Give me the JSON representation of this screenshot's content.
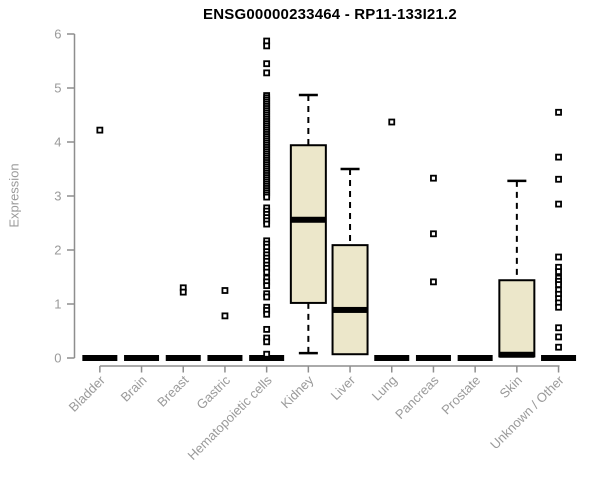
{
  "chart_data": {
    "type": "boxplot",
    "title": "ENSG00000233464 - RP11-133I21.2",
    "ylabel": "Expression",
    "xlabel": "",
    "ylim": [
      0,
      6
    ],
    "y_ticks": [
      "0",
      "1",
      "2",
      "3",
      "4",
      "5",
      "6"
    ],
    "grid": false,
    "legend": "none",
    "categories": [
      "Bladder",
      "Brain",
      "Breast",
      "Gastric",
      "Hematopoietic cells",
      "Kidney",
      "Liver",
      "Lung",
      "Pancreas",
      "Prostate",
      "Skin",
      "Unknown / Other"
    ],
    "series": [
      {
        "name": "Bladder",
        "q1": 0,
        "median": 0,
        "q3": 0,
        "whisker_low": 0,
        "whisker_high": 0,
        "outliers": [
          4.22
        ]
      },
      {
        "name": "Brain",
        "q1": 0,
        "median": 0,
        "q3": 0,
        "whisker_low": 0,
        "whisker_high": 0,
        "outliers": []
      },
      {
        "name": "Breast",
        "q1": 0,
        "median": 0,
        "q3": 0,
        "whisker_low": 0,
        "whisker_high": 0,
        "outliers": [
          1.3,
          1.22
        ]
      },
      {
        "name": "Gastric",
        "q1": 0,
        "median": 0,
        "q3": 0,
        "whisker_low": 0,
        "whisker_high": 0,
        "outliers": [
          1.25,
          0.78
        ]
      },
      {
        "name": "Hematopoietic cells",
        "q1": 0,
        "median": 0,
        "q3": 0,
        "whisker_low": 0,
        "whisker_high": 0,
        "outliers": [
          5.87,
          5.78,
          5.45,
          5.28,
          4.86,
          4.82,
          4.78,
          4.74,
          4.7,
          4.66,
          4.62,
          4.58,
          4.54,
          4.5,
          4.46,
          4.42,
          4.38,
          4.34,
          4.3,
          4.26,
          4.22,
          4.18,
          4.14,
          4.1,
          4.06,
          4.02,
          3.98,
          3.94,
          3.9,
          3.86,
          3.82,
          3.78,
          3.74,
          3.7,
          3.66,
          3.62,
          3.58,
          3.54,
          3.5,
          3.46,
          3.42,
          3.38,
          3.34,
          3.3,
          3.26,
          3.22,
          3.18,
          3.14,
          3.1,
          3.06,
          3.02,
          2.98,
          2.78,
          2.72,
          2.66,
          2.6,
          2.54,
          2.48,
          2.17,
          2.11,
          2.05,
          1.97,
          1.91,
          1.85,
          1.79,
          1.72,
          1.66,
          1.59,
          1.48,
          1.41,
          1.34,
          1.19,
          1.13,
          0.94,
          0.88,
          0.81,
          0.53,
          0.37,
          0.3,
          0.07
        ]
      },
      {
        "name": "Kidney",
        "q1": 1.02,
        "median": 2.56,
        "q3": 3.94,
        "whisker_low": 0.09,
        "whisker_high": 4.87,
        "outliers": []
      },
      {
        "name": "Liver",
        "q1": 0.07,
        "median": 0.89,
        "q3": 2.09,
        "whisker_low": 0.07,
        "whisker_high": 3.5,
        "outliers": []
      },
      {
        "name": "Lung",
        "q1": 0,
        "median": 0,
        "q3": 0,
        "whisker_low": 0,
        "whisker_high": 0,
        "outliers": [
          4.37
        ]
      },
      {
        "name": "Pancreas",
        "q1": 0,
        "median": 0,
        "q3": 0,
        "whisker_low": 0,
        "whisker_high": 0,
        "outliers": [
          3.33,
          2.3,
          1.41
        ]
      },
      {
        "name": "Prostate",
        "q1": 0,
        "median": 0,
        "q3": 0,
        "whisker_low": 0,
        "whisker_high": 0,
        "outliers": []
      },
      {
        "name": "Skin",
        "q1": 0.03,
        "median": 0.06,
        "q3": 1.44,
        "whisker_low": 0.03,
        "whisker_high": 3.28,
        "outliers": []
      },
      {
        "name": "Unknown / Other",
        "q1": 0,
        "median": 0,
        "q3": 0,
        "whisker_low": 0,
        "whisker_high": 0,
        "outliers": [
          4.55,
          3.72,
          3.31,
          2.85,
          1.87,
          1.68,
          1.6,
          1.48,
          1.42,
          1.36,
          1.26,
          1.18,
          1.1,
          1.02,
          0.94,
          0.56,
          0.39,
          0.2
        ]
      }
    ]
  },
  "colors": {
    "box_fill": "#ECE7CA",
    "box_border": "#000000",
    "median": "#000000",
    "whisker": "#000000",
    "outlier_stroke": "#000000",
    "outlier_fill": "#ffffff",
    "axis_line": "#8e8e8e",
    "tick_label": "#9a9a9a",
    "title": "#000000"
  }
}
